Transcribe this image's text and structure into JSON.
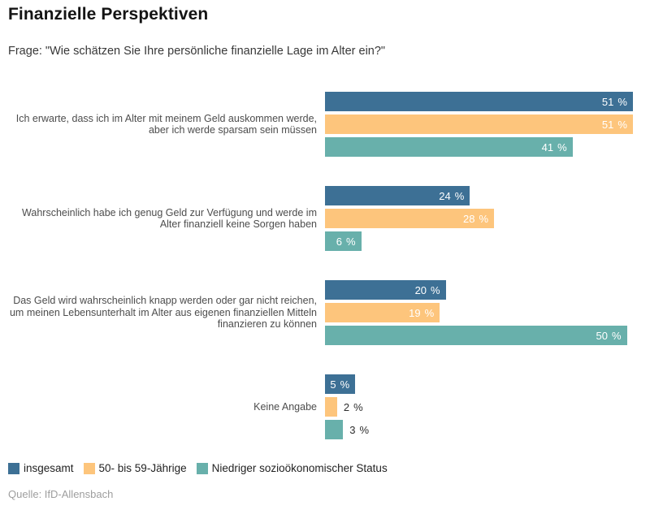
{
  "header": {
    "title": "Finanzielle Perspektiven",
    "subtitle": "Frage: \"Wie schätzen Sie Ihre persönliche finanzielle Lage im Alter ein?\""
  },
  "chart_data": {
    "type": "bar",
    "orientation": "horizontal",
    "title": "Finanzielle Perspektiven",
    "subtitle": "Frage: \"Wie schätzen Sie Ihre persönliche finanzielle Lage im Alter ein?\"",
    "categories": [
      "Ich erwarte, dass ich im Alter mit meinem Geld auskommen werde, aber ich werde sparsam sein müssen",
      "Wahrscheinlich habe ich genug Geld zur Verfügung und werde im Alter finanziell keine Sorgen haben",
      "Das Geld wird wahrscheinlich knapp werden oder gar nicht reichen, um meinen Lebensunterhalt im Alter aus eigenen finanziellen Mitteln finanzieren zu können",
      "Keine Angabe"
    ],
    "series": [
      {
        "name": "insgesamt",
        "color": "#3d7095",
        "values": [
          51,
          24,
          20,
          5
        ]
      },
      {
        "name": "50- bis 59-Jährige",
        "color": "#fdc57c",
        "values": [
          51,
          28,
          19,
          2
        ]
      },
      {
        "name": "Niedriger sozioökonomischer Status",
        "color": "#68b0ab",
        "values": [
          41,
          6,
          50,
          3
        ]
      }
    ],
    "value_unit": "%",
    "xlim": [
      0,
      51
    ],
    "grid": false,
    "axis_ticks": "none",
    "value_label_style": "inside bar end, white; outside bar in dark for values below 5",
    "legend_position": "bottom-left"
  },
  "footer": {
    "source": "Quelle: IfD-Allensbach"
  }
}
